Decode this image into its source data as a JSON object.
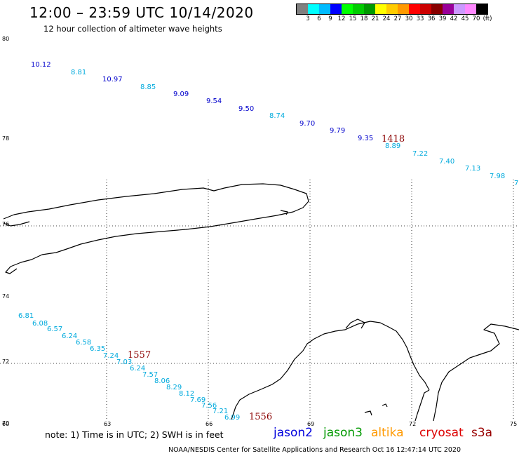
{
  "header": {
    "title": "12:00 – 23:59 UTC 10/14/2020",
    "subtitle": "12 hour collection of altimeter wave heights"
  },
  "color_scale": {
    "colors": [
      "#808080",
      "#00ffff",
      "#00bbff",
      "#0000ff",
      "#00ff00",
      "#00cc00",
      "#009900",
      "#ffff00",
      "#ffcc00",
      "#ff9900",
      "#ff0000",
      "#cc0000",
      "#880000",
      "#990099",
      "#cc99ff",
      "#ff88ff",
      "#000000"
    ],
    "labels": [
      "3",
      "6",
      "9",
      "12",
      "15",
      "18",
      "21",
      "24",
      "27",
      "30",
      "33",
      "36",
      "39",
      "42",
      "45",
      "70",
      "(ft)"
    ]
  },
  "map": {
    "lat_labels": [
      "80",
      "78",
      "76",
      "74",
      "72",
      "70"
    ],
    "lon_labels": [
      "60",
      "63",
      "66",
      "69",
      "72",
      "75"
    ],
    "observations": [
      {
        "v": "10.12",
        "color": "#0000cc"
      },
      {
        "v": "8.81",
        "color": "#00aadd"
      },
      {
        "v": "10.97",
        "color": "#0000cc"
      },
      {
        "v": "8.85",
        "color": "#00aadd"
      },
      {
        "v": "9.09",
        "color": "#0000cc"
      },
      {
        "v": "9.54",
        "color": "#0000cc"
      },
      {
        "v": "9.50",
        "color": "#0000cc"
      },
      {
        "v": "8.74",
        "color": "#00aadd"
      },
      {
        "v": "9.70",
        "color": "#0000cc"
      },
      {
        "v": "9.79",
        "color": "#0000cc"
      },
      {
        "v": "9.35",
        "color": "#0000cc"
      },
      {
        "v": "8.89",
        "color": "#00aadd"
      },
      {
        "v": "7.22",
        "color": "#00aadd"
      },
      {
        "v": "7.40",
        "color": "#00aadd"
      },
      {
        "v": "7.13",
        "color": "#00aadd"
      },
      {
        "v": "7.98",
        "color": "#00aadd"
      },
      {
        "v": "7",
        "color": "#00aadd"
      },
      {
        "v": "6.81",
        "color": "#00aadd"
      },
      {
        "v": "6.08",
        "color": "#00aadd"
      },
      {
        "v": "6.57",
        "color": "#00aadd"
      },
      {
        "v": "6.24",
        "color": "#00aadd"
      },
      {
        "v": "6.58",
        "color": "#00aadd"
      },
      {
        "v": "6.35",
        "color": "#00aadd"
      },
      {
        "v": "7.24",
        "color": "#00aadd"
      },
      {
        "v": "7.03",
        "color": "#00aadd"
      },
      {
        "v": "6.24",
        "color": "#00aadd"
      },
      {
        "v": "7.57",
        "color": "#00aadd"
      },
      {
        "v": "8.06",
        "color": "#00aadd"
      },
      {
        "v": "8.29",
        "color": "#00aadd"
      },
      {
        "v": "8.12",
        "color": "#00aadd"
      },
      {
        "v": "7.69",
        "color": "#00aadd"
      },
      {
        "v": "7.56",
        "color": "#00aadd"
      },
      {
        "v": "7.21",
        "color": "#00aadd"
      },
      {
        "v": "6.99",
        "color": "#00aadd"
      }
    ],
    "pass_times": [
      "1418",
      "1557",
      "1556"
    ]
  },
  "note": "note: 1) Time is in UTC; 2) SWH is in feet",
  "legend": [
    {
      "label": "jason2",
      "color": "#0000dd"
    },
    {
      "label": "jason3",
      "color": "#009900"
    },
    {
      "label": "altika",
      "color": "#ff9900"
    },
    {
      "label": "cryosat",
      "color": "#dd0000"
    },
    {
      "label": "s3a",
      "color": "#990000"
    }
  ],
  "footer": "NOAA/NESDIS Center for Satellite Applications and Research   Oct 16 12:47:14 UTC 2020"
}
